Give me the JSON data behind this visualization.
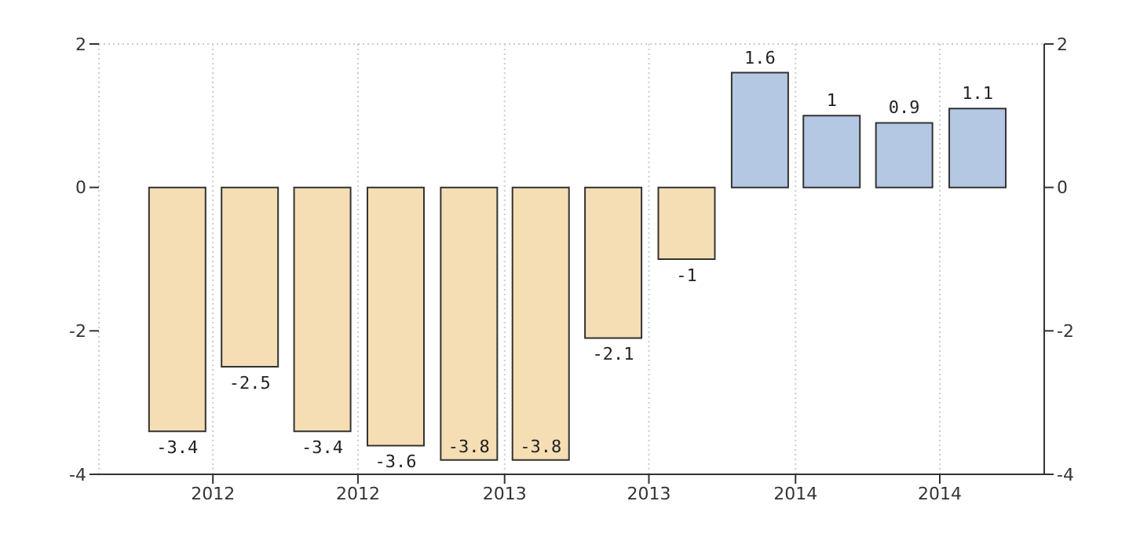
{
  "chart_data": {
    "type": "bar",
    "x": [
      "2012-01",
      "2012-04",
      "2012-07",
      "2012-10",
      "2013-01",
      "2013-04",
      "2013-07",
      "2013-10",
      "2014-01",
      "2014-04",
      "2014-07",
      "2014-10"
    ],
    "values": [
      -3.4,
      -2.5,
      -3.4,
      -3.6,
      -3.8,
      -3.8,
      -2.1,
      -1,
      1.6,
      1,
      0.9,
      1.1
    ],
    "colors": [
      "#f5deb3",
      "#f5deb3",
      "#f5deb3",
      "#f5deb3",
      "#f5deb3",
      "#f5deb3",
      "#f5deb3",
      "#f5deb3",
      "#b4c8e4",
      "#b4c8e4",
      "#b4c8e4",
      "#b4c8e4"
    ],
    "xlim": [
      "2011-09-25",
      "2014-12-24"
    ],
    "xticks": [
      {
        "value": "2012-02-15",
        "label": "2012"
      },
      {
        "value": "2012-08-15",
        "label": "2012"
      },
      {
        "value": "2013-02-15",
        "label": "2013"
      },
      {
        "value": "2013-08-15",
        "label": "2013"
      },
      {
        "value": "2014-02-15",
        "label": "2014"
      },
      {
        "value": "2014-08-15",
        "label": "2014"
      }
    ],
    "ylim": [
      -4,
      2
    ],
    "yticks": [
      -4,
      -2,
      0,
      2
    ],
    "y2lim": [
      -4,
      2
    ],
    "y2ticks": [
      -4,
      -2,
      0,
      2
    ],
    "grid": true,
    "data_labels": true
  }
}
